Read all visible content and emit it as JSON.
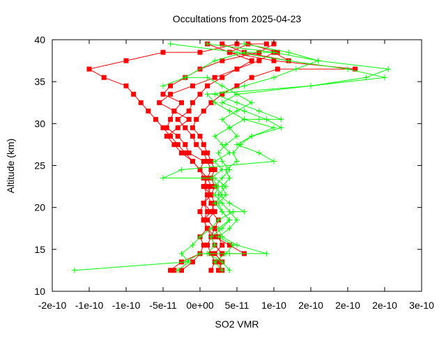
{
  "chart_data": {
    "type": "line",
    "title": "Occultations from 2025-04-23",
    "xlabel": "SO2 VMR",
    "ylabel": "Altitude (km)",
    "xlim": [
      -2e-10,
      3e-10
    ],
    "ylim": [
      10,
      40
    ],
    "x_ticks": [
      -2e-10,
      -1.5e-10,
      -1e-10,
      -5e-11,
      0,
      5e-11,
      1e-10,
      1.5e-10,
      2e-10,
      2.5e-10,
      3e-10
    ],
    "x_tick_labels": [
      "-2e-10",
      "-1e-10",
      "-1e-10",
      "-5e-11",
      "0e+00",
      "5e-11",
      "1e-10",
      "2e-10",
      "2e-10",
      "2e-10",
      "3e-10"
    ],
    "y_ticks": [
      10,
      15,
      20,
      25,
      30,
      35,
      40
    ],
    "y_tick_labels": [
      "10",
      "15",
      "20",
      "25",
      "30",
      "35",
      "40"
    ],
    "grid": false,
    "legend": "none",
    "series": [
      {
        "color": "#ff0000",
        "marker": "square",
        "x": [
          1.5e-11,
          2e-11,
          1.5e-11,
          1e-11,
          1.5e-11,
          1e-11,
          5e-12,
          1e-11,
          5e-12,
          1.5e-11,
          1e-11,
          5e-12,
          0,
          -1e-11,
          -2e-11,
          -3e-11,
          -4e-11,
          -5e-11,
          -6e-11,
          -7e-11,
          -8e-11,
          -9e-11,
          -1e-10,
          -1.3e-10,
          -1.5e-10,
          -1e-10,
          -5e-11,
          0,
          5e-11,
          9e-11
        ],
        "y": [
          12.5,
          13.5,
          14.5,
          15.5,
          16.5,
          17.5,
          18.5,
          19.5,
          20.5,
          21.5,
          22.5,
          23.5,
          24.5,
          25.5,
          26.5,
          27.5,
          28.5,
          29.5,
          30.5,
          31.5,
          32.5,
          33.5,
          34.5,
          35.5,
          36.5,
          37.5,
          38.5,
          38.5,
          39.5,
          39.5
        ]
      },
      {
        "color": "#ff0000",
        "marker": "square",
        "x": [
          -3.5e-11,
          -2.5e-11,
          -1e-11,
          0,
          5e-12,
          0,
          1e-11,
          5e-12,
          1.5e-11,
          5e-12,
          1.5e-11,
          5e-12,
          1e-11,
          0,
          5e-12,
          -1.5e-11,
          -2e-11,
          -3e-11,
          -4.5e-11,
          -4e-11,
          -3.5e-11,
          -2.5e-11,
          -5e-11,
          -4e-11,
          -2e-11,
          0,
          3e-11,
          8e-11,
          1e-10
        ],
        "y": [
          12.5,
          12.5,
          13.5,
          14.5,
          15.5,
          16.5,
          17.5,
          18.5,
          19.5,
          20.5,
          21.5,
          22.5,
          23.5,
          24.5,
          25.5,
          26.5,
          27.5,
          28.5,
          29.5,
          30.5,
          31.5,
          32.5,
          33.5,
          34.5,
          35.5,
          36.5,
          37.5,
          38.5,
          39.5
        ]
      },
      {
        "color": "#ff0000",
        "marker": "square",
        "x": [
          3e-11,
          2.5e-11,
          3e-11,
          2e-11,
          1.5e-11,
          2e-11,
          1e-11,
          2e-11,
          1.5e-11,
          1e-11,
          1.5e-11,
          1e-11,
          1.5e-11,
          1e-11,
          5e-12,
          -5e-12,
          -1e-11,
          -2e-11,
          -3e-11,
          -1.5e-11,
          -1e-11,
          0,
          1e-11,
          3e-11,
          5e-11,
          8e-11,
          1e-10,
          1.2e-10,
          6e-11,
          3e-11
        ],
        "y": [
          12.5,
          13.5,
          14.5,
          15.5,
          16.5,
          17.5,
          18.5,
          19.5,
          20.5,
          21.5,
          22.5,
          23.5,
          24.5,
          25.5,
          26.5,
          27.5,
          28.5,
          29.5,
          30.5,
          31.5,
          32.5,
          33.5,
          34.5,
          35.5,
          36.5,
          37.5,
          38.5,
          37.5,
          38.5,
          39.5
        ]
      },
      {
        "color": "#ff0000",
        "marker": "square",
        "x": [
          -4e-11,
          -2.5e-11,
          0,
          3e-11,
          6e-11,
          4e-11,
          2e-11,
          1e-11,
          5e-12,
          0,
          5e-12,
          1e-11,
          5e-12,
          1e-11,
          0,
          -1e-11,
          -2.5e-11,
          -3.5e-11,
          -4.5e-11,
          -3e-11,
          -1.5e-11,
          -3.5e-11,
          -5.5e-11,
          -4e-11,
          -1e-11,
          2e-11,
          5e-11,
          7e-11,
          4e-11,
          1e-11
        ],
        "y": [
          12.5,
          13.5,
          14.5,
          14.5,
          14.5,
          15.5,
          16.5,
          17.5,
          18.5,
          19.5,
          20.5,
          21.5,
          22.5,
          23.5,
          24.5,
          25.5,
          26.5,
          27.5,
          28.5,
          29.5,
          30.5,
          31.5,
          32.5,
          33.5,
          34.5,
          35.5,
          36.5,
          37.5,
          38.5,
          39.5
        ]
      },
      {
        "color": "#ff0000",
        "marker": "square",
        "x": [
          2.5e-11,
          3e-11,
          2e-11,
          3e-11,
          2.5e-11,
          2e-11,
          2.5e-11,
          1.5e-11,
          2e-11,
          1.5e-11,
          2e-11,
          1.5e-11,
          2e-11,
          1.5e-11,
          1e-11,
          5e-12,
          0,
          -1e-11,
          -5e-12,
          5e-12,
          1.5e-11,
          3e-11,
          5e-11,
          7e-11,
          1.05e-10,
          2.1e-10,
          1e-10,
          4e-11,
          6.5e-11,
          1.05e-10
        ],
        "y": [
          12.5,
          13.5,
          14.5,
          15.5,
          16.5,
          17.5,
          18.5,
          19.5,
          20.5,
          21.5,
          22.5,
          23.5,
          24.5,
          25.5,
          26.5,
          27.5,
          28.5,
          29.5,
          30.5,
          31.5,
          32.5,
          33.5,
          34.5,
          35.5,
          36.5,
          36.5,
          37.5,
          38.5,
          39.5,
          38.5
        ]
      },
      {
        "color": "#00ff00",
        "marker": "plus",
        "x": [
          -1.7e-10,
          -2e-11,
          0,
          4e-11,
          9e-11,
          5e-11,
          3e-11,
          2.5e-11,
          4e-11,
          3e-11,
          2.5e-11,
          3.5e-11,
          3e-11,
          4e-11,
          3.5e-11,
          5e-11,
          4.5e-11,
          5.5e-11,
          7e-11,
          1e-10,
          6e-11,
          4e-11,
          2e-11,
          1e-11,
          1.5e-10,
          2.5e-10,
          2e-10,
          1.2e-10,
          5e-11,
          -4e-11
        ],
        "y": [
          12.5,
          13.5,
          14.5,
          14.5,
          14.5,
          15.5,
          16.5,
          17.5,
          18.5,
          19.5,
          20.5,
          21.5,
          22.5,
          23.5,
          24.5,
          25.5,
          26.5,
          27.5,
          28.5,
          29.5,
          30.5,
          31.5,
          32.5,
          33.5,
          34.5,
          35.5,
          36.5,
          37.5,
          38.5,
          39.5
        ]
      },
      {
        "color": "#00ff00",
        "marker": "plus",
        "x": [
          -3e-11,
          -1.5e-11,
          -2.5e-11,
          -1e-11,
          0,
          1.5e-11,
          2.5e-11,
          4.5e-11,
          6e-11,
          4e-11,
          2.5e-11,
          3.5e-11,
          2e-11,
          -5e-11,
          -2.5e-11,
          1e-10,
          8e-11,
          5e-11,
          7e-11,
          1.1e-10,
          9e-11,
          6e-11,
          3e-11,
          5e-11,
          1.5e-10,
          2.25e-10,
          2.55e-10,
          1.6e-10,
          1e-10,
          1e-11
        ],
        "y": [
          12.5,
          13.5,
          14.5,
          15.5,
          16.5,
          17.5,
          18.5,
          19.5,
          19.5,
          20.5,
          21.5,
          22.5,
          23.5,
          23.5,
          24.5,
          25.5,
          26.5,
          27.5,
          28.5,
          29.5,
          30.5,
          31.5,
          32.5,
          33.5,
          34.5,
          35.5,
          36.5,
          37.5,
          38.5,
          39.5
        ]
      },
      {
        "color": "#00ff00",
        "marker": "plus",
        "x": [
          4e-11,
          3e-11,
          1e-11,
          2e-11,
          1.5e-11,
          3e-11,
          4e-11,
          3e-11,
          2e-11,
          3e-11,
          2e-11,
          3e-11,
          4e-11,
          3e-11,
          2.5e-11,
          3.5e-11,
          5e-11,
          4e-11,
          3e-11,
          5e-11,
          7e-11,
          5e-11,
          3e-11,
          1e-11,
          -2e-11,
          -5e-11,
          -2e-11,
          2e-11,
          6e-11,
          1e-10
        ],
        "y": [
          12.5,
          13.5,
          14.5,
          15.5,
          16.5,
          17.5,
          18.5,
          19.5,
          20.5,
          21.5,
          22.5,
          23.5,
          24.5,
          25.5,
          26.5,
          27.5,
          28.5,
          29.5,
          30.5,
          31.5,
          32.5,
          33.5,
          34.5,
          35.5,
          35.5,
          34.5,
          35.5,
          37.5,
          38.5,
          38.5
        ]
      },
      {
        "color": "#00ff00",
        "marker": "plus",
        "x": [
          3e-11,
          2e-11,
          3.5e-11,
          4.5e-11,
          2.5e-11,
          4e-11,
          5e-11,
          4e-11,
          3e-11,
          2e-11,
          2.5e-11,
          1.5e-11,
          3e-11,
          2e-11,
          4e-11,
          3e-11,
          2e-11,
          4e-11,
          6e-11,
          8e-11,
          1.1e-10,
          8e-11,
          5e-11,
          2e-11,
          6e-11,
          1e-10,
          1.3e-10,
          1.6e-10,
          1.2e-10,
          6e-11
        ],
        "y": [
          12.5,
          13.5,
          14.5,
          15.5,
          16.5,
          17.5,
          18.5,
          19.5,
          20.5,
          21.5,
          22.5,
          23.5,
          24.5,
          25.5,
          26.5,
          27.5,
          28.5,
          29.5,
          30.5,
          30.5,
          30.5,
          31.5,
          32.5,
          33.5,
          34.5,
          35.5,
          36.5,
          37.5,
          38.5,
          39.5
        ]
      }
    ]
  }
}
